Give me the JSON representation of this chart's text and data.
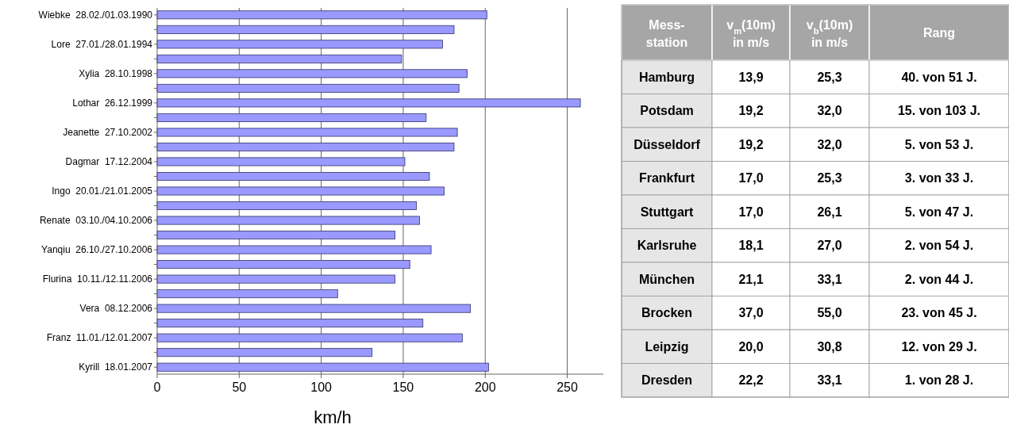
{
  "chart_data": [
    {
      "type": "bar",
      "orientation": "horizontal",
      "categories": [
        "Wiebke  28.02./01.03.1990",
        null,
        "Lore  27.01./28.01.1994",
        null,
        "Xylia  28.10.1998",
        null,
        "Lothar  26.12.1999",
        null,
        "Jeanette  27.10.2002",
        null,
        "Dagmar  17.12.2004",
        null,
        "Ingo  20.01./21.01.2005",
        null,
        "Renate  03.10./04.10.2006",
        null,
        "Yanqiu  26.10./27.10.2006",
        null,
        "Flurina  10.11./12.11.2006",
        null,
        "Vera  08.12.2006",
        null,
        "Franz  11.01./12.01.2007",
        null,
        "Kyrill  18.01.2007"
      ],
      "values": [
        201,
        181,
        174,
        149,
        189,
        184,
        258,
        164,
        183,
        181,
        151,
        166,
        175,
        158,
        160,
        145,
        167,
        154,
        145,
        110,
        191,
        162,
        186,
        131,
        202
      ],
      "color": "#9999ff",
      "xlim": [
        0,
        272
      ],
      "xticks": [
        0,
        50,
        100,
        150,
        200,
        250
      ],
      "grid": "x",
      "xlabel": "km/h"
    },
    {
      "type": "other",
      "ylabel": "Mess-station",
      "categories": [
        "v$_{m}$(10m) in m/s",
        "v$_{b}$(10m) in m/s",
        "Rang"
      ],
      "y_categories": [
        "Hamburg",
        "Potsdam",
        "Düsseldorf",
        "Frankfurt",
        "Stuttgart",
        "Karlsruhe",
        "München",
        "Brocken",
        "Leipzig",
        "Dresden"
      ],
      "cell_labels": [
        [
          "13,9",
          "25,3",
          "40. von 51 J."
        ],
        [
          "19,2",
          "32,0",
          "15. von 103 J."
        ],
        [
          "19,2",
          "32,0",
          "5. von 53 J."
        ],
        [
          "17,0",
          "25,3",
          "3. von 33 J."
        ],
        [
          "17,0",
          "26,1",
          "5. von 47 J."
        ],
        [
          "18,1",
          "27,0",
          "2. von 54 J."
        ],
        [
          "21,1",
          "33,1",
          "2. von 44 J."
        ],
        [
          "37,0",
          "55,0",
          "23. von 45 J."
        ],
        [
          "20,0",
          "30,8",
          "12. von 29 J."
        ],
        [
          "22,2",
          "33,1",
          "1. von 28 J."
        ]
      ]
    }
  ]
}
